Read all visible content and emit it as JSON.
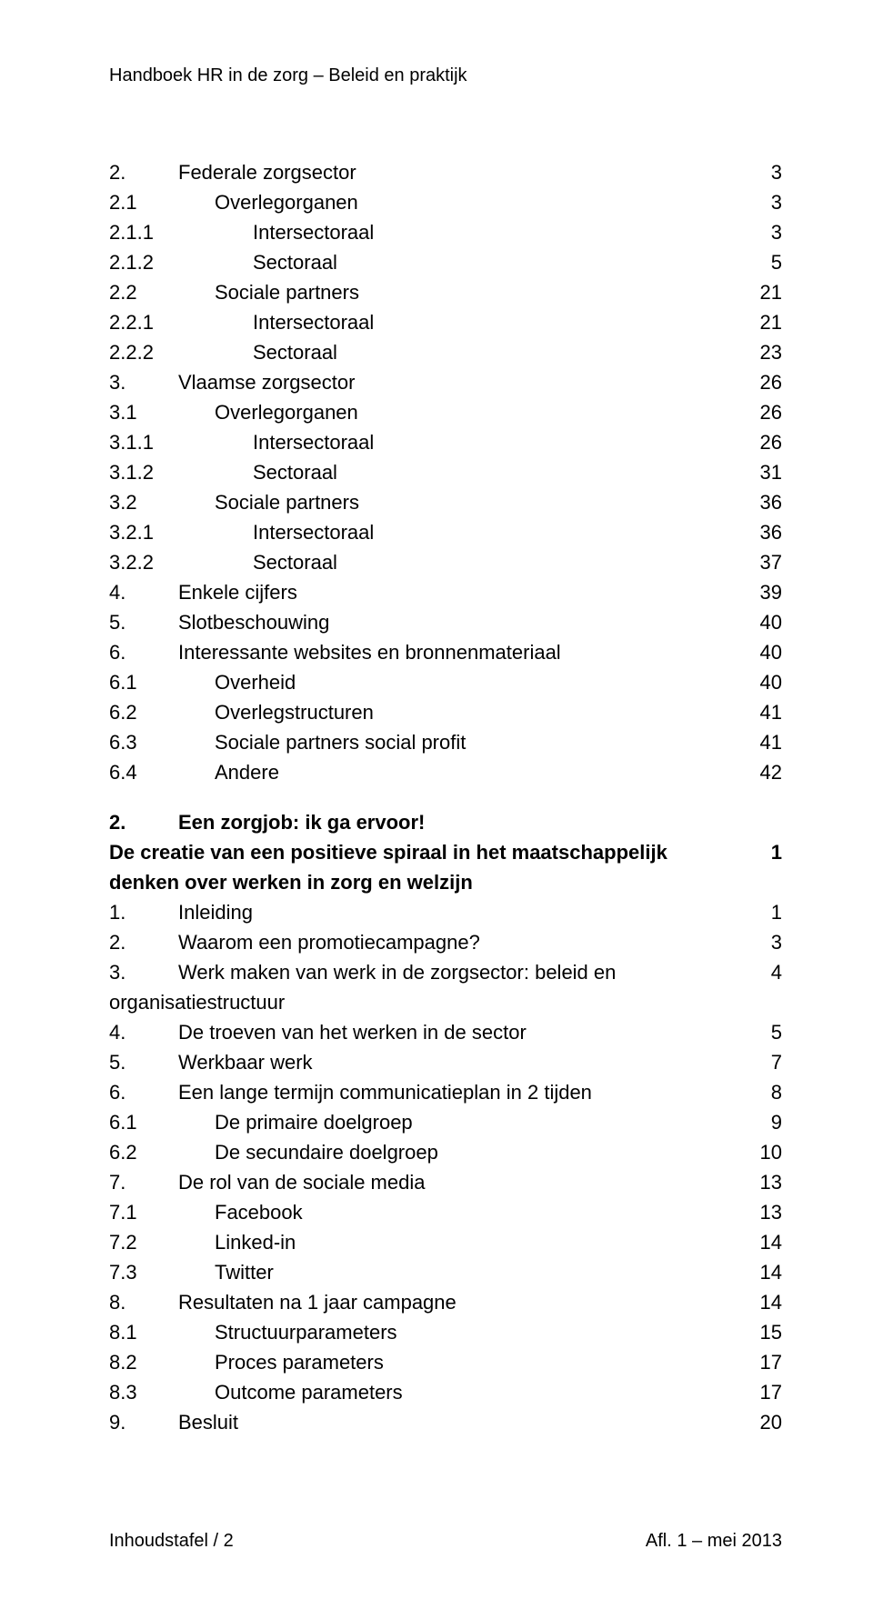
{
  "running_head": "Handboek HR in de zorg – Beleid en praktijk",
  "footer_left": "Inhoudstafel / 2",
  "footer_right": "Afl. 1 – mei 2013",
  "block1": [
    {
      "lvl": 1,
      "num": "2.",
      "title": "Federale zorgsector",
      "page": "3"
    },
    {
      "lvl": 2,
      "num": "2.1",
      "title": "Overlegorganen",
      "page": "3"
    },
    {
      "lvl": 3,
      "num": "2.1.1",
      "title": "Intersectoraal",
      "page": "3"
    },
    {
      "lvl": 3,
      "num": "2.1.2",
      "title": "Sectoraal",
      "page": "5"
    },
    {
      "lvl": 2,
      "num": "2.2",
      "title": "Sociale partners",
      "page": "21"
    },
    {
      "lvl": 3,
      "num": "2.2.1",
      "title": "Intersectoraal",
      "page": "21"
    },
    {
      "lvl": 3,
      "num": "2.2.2",
      "title": "Sectoraal",
      "page": "23"
    },
    {
      "lvl": 1,
      "num": "3.",
      "title": "Vlaamse zorgsector",
      "page": "26"
    },
    {
      "lvl": 2,
      "num": "3.1",
      "title": "Overlegorganen",
      "page": "26"
    },
    {
      "lvl": 3,
      "num": "3.1.1",
      "title": "Intersectoraal",
      "page": "26"
    },
    {
      "lvl": 3,
      "num": "3.1.2",
      "title": "Sectoraal",
      "page": "31"
    },
    {
      "lvl": 2,
      "num": "3.2",
      "title": "Sociale partners",
      "page": "36"
    },
    {
      "lvl": 3,
      "num": "3.2.1",
      "title": "Intersectoraal",
      "page": "36"
    },
    {
      "lvl": 3,
      "num": "3.2.2",
      "title": "Sectoraal",
      "page": "37"
    },
    {
      "lvl": 1,
      "num": "4.",
      "title": "Enkele cijfers",
      "page": "39"
    },
    {
      "lvl": 1,
      "num": "5.",
      "title": "Slotbeschouwing",
      "page": "40"
    },
    {
      "lvl": 1,
      "num": "6.",
      "title": "Interessante websites en bronnenmateriaal",
      "page": "40"
    },
    {
      "lvl": 2,
      "num": "6.1",
      "title": "Overheid",
      "page": "40"
    },
    {
      "lvl": 2,
      "num": "6.2",
      "title": "Overlegstructuren",
      "page": "41"
    },
    {
      "lvl": 2,
      "num": "6.3",
      "title": "Sociale partners social profit",
      "page": "41"
    },
    {
      "lvl": 2,
      "num": "6.4",
      "title": "Andere",
      "page": "42"
    }
  ],
  "section2": {
    "num": "2.",
    "title": "Een zorgjob: ik ga ervoor!",
    "subtitle": "De creatie van een positieve spiraal in het maatschappelijk denken over werken in zorg en welzijn",
    "subtitle_page": "1"
  },
  "block2": [
    {
      "lvl": 1,
      "num": "1.",
      "title": "Inleiding",
      "page": "1"
    },
    {
      "lvl": 1,
      "num": "2.",
      "title": "Waarom een promotiecampagne?",
      "page": "3"
    },
    {
      "lvl": 1,
      "num": "3.",
      "title": "Werk maken van werk in de zorgsector: beleid en organisatiestructuur",
      "page": "4"
    },
    {
      "lvl": 1,
      "num": "4.",
      "title": "De troeven van het werken in de sector",
      "page": "5"
    },
    {
      "lvl": 1,
      "num": "5.",
      "title": "Werkbaar werk",
      "page": "7"
    },
    {
      "lvl": 1,
      "num": "6.",
      "title": "Een lange termijn communicatieplan in 2 tijden",
      "page": "8"
    },
    {
      "lvl": 2,
      "num": "6.1",
      "title": "De primaire doelgroep",
      "page": "9"
    },
    {
      "lvl": 2,
      "num": "6.2",
      "title": "De secundaire doelgroep",
      "page": "10"
    },
    {
      "lvl": 1,
      "num": "7.",
      "title": "De rol van de sociale media",
      "page": "13"
    },
    {
      "lvl": 2,
      "num": "7.1",
      "title": "Facebook",
      "page": "13"
    },
    {
      "lvl": 2,
      "num": "7.2",
      "title": "Linked-in",
      "page": "14"
    },
    {
      "lvl": 2,
      "num": "7.3",
      "title": "Twitter",
      "page": "14"
    },
    {
      "lvl": 1,
      "num": "8.",
      "title": "Resultaten na 1 jaar campagne",
      "page": "14"
    },
    {
      "lvl": 2,
      "num": "8.1",
      "title": "Structuurparameters",
      "page": "15"
    },
    {
      "lvl": 2,
      "num": "8.2",
      "title": "Proces parameters",
      "page": "17"
    },
    {
      "lvl": 2,
      "num": "8.3",
      "title": "Outcome parameters",
      "page": "17"
    },
    {
      "lvl": 1,
      "num": "9.",
      "title": "Besluit",
      "page": "20"
    }
  ]
}
